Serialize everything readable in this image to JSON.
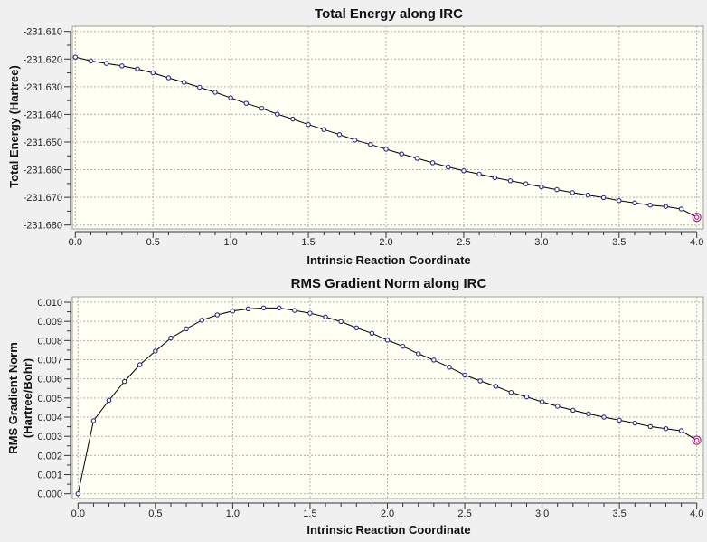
{
  "chart_data": [
    {
      "type": "line",
      "title": "Total Energy along IRC",
      "xlabel": "Intrinsic Reaction Coordinate",
      "ylabel": "Total Energy (Hartree)",
      "ylabel_lines": [
        "Total Energy (Hartree)"
      ],
      "xlim": [
        0,
        4
      ],
      "ylim": [
        -231.68,
        -231.61
      ],
      "grid": true,
      "xticks": [
        "0.0",
        "0.5",
        "1.0",
        "1.5",
        "2.0",
        "2.5",
        "3.0",
        "3.5",
        "4.0"
      ],
      "yticks": [
        "-231.610",
        "-231.620",
        "-231.630",
        "-231.640",
        "-231.650",
        "-231.660",
        "-231.670",
        "-231.680"
      ],
      "x": [
        0,
        0.1,
        0.2,
        0.3,
        0.4,
        0.5,
        0.6,
        0.7,
        0.8,
        0.9,
        1.0,
        1.1,
        1.2,
        1.3,
        1.4,
        1.5,
        1.6,
        1.7,
        1.8,
        1.9,
        2.0,
        2.1,
        2.2,
        2.3,
        2.4,
        2.5,
        2.6,
        2.7,
        2.8,
        2.9,
        3.0,
        3.1,
        3.2,
        3.3,
        3.4,
        3.5,
        3.6,
        3.7,
        3.8,
        3.9,
        4.0
      ],
      "y": [
        -231.6193,
        -231.6207,
        -231.6216,
        -231.6225,
        -231.6236,
        -231.625,
        -231.6268,
        -231.6284,
        -231.6302,
        -231.632,
        -231.634,
        -231.636,
        -231.6378,
        -231.6399,
        -231.6417,
        -231.6437,
        -231.6455,
        -231.6473,
        -231.6493,
        -231.6509,
        -231.6526,
        -231.6543,
        -231.6559,
        -231.6575,
        -231.659,
        -231.6604,
        -231.6616,
        -231.6629,
        -231.664,
        -231.6651,
        -231.6662,
        -231.6672,
        -231.6683,
        -231.6692,
        -231.6701,
        -231.6712,
        -231.672,
        -231.6728,
        -231.6733,
        -231.6742,
        -231.6772
      ],
      "highlighted_point": 4.0
    },
    {
      "type": "line",
      "title": "RMS Gradient Norm along IRC",
      "xlabel": "Intrinsic Reaction Coordinate",
      "ylabel": "RMS Gradient Norm (Hartree/Bohr)",
      "ylabel_lines": [
        "RMS Gradient Norm",
        "(Hartree/Bohr)"
      ],
      "xlim": [
        0,
        4
      ],
      "ylim": [
        0,
        0.01
      ],
      "grid": true,
      "xticks": [
        "0.0",
        "0.5",
        "1.0",
        "1.5",
        "2.0",
        "2.5",
        "3.0",
        "3.5",
        "4.0"
      ],
      "yticks": [
        "0.010",
        "0.009",
        "0.008",
        "0.007",
        "0.006",
        "0.005",
        "0.004",
        "0.003",
        "0.002",
        "0.001",
        "0.000"
      ],
      "x": [
        0,
        0.1,
        0.2,
        0.3,
        0.4,
        0.5,
        0.6,
        0.7,
        0.8,
        0.9,
        1.0,
        1.1,
        1.2,
        1.3,
        1.4,
        1.5,
        1.6,
        1.7,
        1.8,
        1.9,
        2.0,
        2.1,
        2.2,
        2.3,
        2.4,
        2.5,
        2.6,
        2.7,
        2.8,
        2.9,
        3.0,
        3.1,
        3.2,
        3.3,
        3.4,
        3.5,
        3.6,
        3.7,
        3.8,
        3.9,
        4.0
      ],
      "y": [
        0.0,
        0.00381,
        0.00488,
        0.00586,
        0.00674,
        0.00745,
        0.00813,
        0.00861,
        0.00906,
        0.00934,
        0.00954,
        0.00965,
        0.0097,
        0.0097,
        0.00957,
        0.00943,
        0.00923,
        0.00899,
        0.00866,
        0.00838,
        0.00802,
        0.0077,
        0.00731,
        0.00698,
        0.00661,
        0.0062,
        0.00589,
        0.00561,
        0.00529,
        0.00506,
        0.0048,
        0.00457,
        0.00436,
        0.00417,
        0.004,
        0.00384,
        0.00369,
        0.00351,
        0.0034,
        0.00329,
        0.00279
      ],
      "highlighted_point": 4.0
    }
  ],
  "colors": {
    "plot_bg": "#fffff4",
    "line": "#000000",
    "marker": "#2a2a7a",
    "highlight": "#a0307a",
    "grid": "#b0b0b0"
  }
}
